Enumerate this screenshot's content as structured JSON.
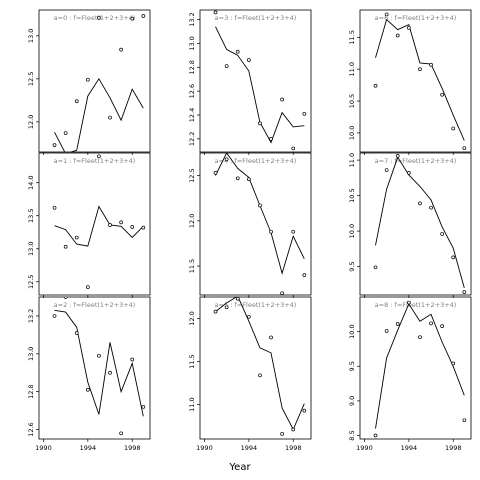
{
  "figure": {
    "xlabel": "Year",
    "colors": {
      "line": "#000000",
      "points": "#000000",
      "strip_text": "#7f7f7f",
      "frame": "#000000"
    }
  },
  "chart_data": [
    {
      "type": "line",
      "label": "a=0 : f=Fleet(1+2+3+4)",
      "xticks": [
        1990,
        1994,
        1998
      ],
      "xtick_labels": [
        "",
        "",
        ""
      ],
      "xlim": [
        1989.6,
        1999.6
      ],
      "yticks": [
        12.0,
        12.5,
        13.0
      ],
      "ylim": [
        11.65,
        13.3
      ],
      "points": {
        "x": [
          1991,
          1992,
          1993,
          1994,
          1995,
          1996,
          1997,
          1998,
          1999
        ],
        "y": [
          11.73,
          11.87,
          12.24,
          12.49,
          13.21,
          12.05,
          12.84,
          13.2,
          13.23
        ]
      },
      "fitted": {
        "x": [
          1991,
          1992,
          1993,
          1994,
          1995,
          1996,
          1997,
          1998,
          1999
        ],
        "y": [
          11.88,
          11.63,
          11.67,
          12.3,
          12.5,
          12.28,
          12.02,
          12.38,
          12.16
        ]
      }
    },
    {
      "type": "line",
      "label": "a=3 : f=Fleet(1+2+3+4)",
      "xticks": [
        1990,
        1994,
        1998
      ],
      "xtick_labels": [
        "",
        "",
        ""
      ],
      "xlim": [
        1989.6,
        1999.6
      ],
      "yticks": [
        12.2,
        12.4,
        12.6,
        12.8,
        13.0,
        13.2
      ],
      "ylim": [
        12.09,
        13.28
      ],
      "points": {
        "x": [
          1991,
          1992,
          1993,
          1994,
          1995,
          1996,
          1997,
          1998,
          1999
        ],
        "y": [
          13.26,
          12.81,
          12.93,
          12.86,
          12.33,
          12.2,
          12.53,
          12.12,
          12.41
        ]
      },
      "fitted": {
        "x": [
          1991,
          1992,
          1993,
          1994,
          1995,
          1996,
          1997,
          1998,
          1999
        ],
        "y": [
          13.14,
          12.95,
          12.9,
          12.77,
          12.34,
          12.17,
          12.42,
          12.3,
          12.31
        ]
      }
    },
    {
      "type": "line",
      "label": "a=6 : f=Fleet(1+2+3+4)",
      "xticks": [
        1990,
        1994,
        1998
      ],
      "xtick_labels": [
        "",
        "",
        ""
      ],
      "xlim": [
        1989.6,
        1999.6
      ],
      "yticks": [
        10.0,
        10.5,
        11.0,
        11.5
      ],
      "ylim": [
        9.7,
        11.93
      ],
      "points": {
        "x": [
          1991,
          1992,
          1993,
          1994,
          1995,
          1996,
          1997,
          1998,
          1999
        ],
        "y": [
          10.74,
          11.86,
          11.53,
          11.65,
          11.0,
          11.07,
          10.6,
          10.07,
          9.76
        ]
      },
      "fitted": {
        "x": [
          1991,
          1992,
          1993,
          1994,
          1995,
          1996,
          1997,
          1998,
          1999
        ],
        "y": [
          11.18,
          11.78,
          11.62,
          11.7,
          11.1,
          11.08,
          10.7,
          10.28,
          9.88
        ]
      }
    },
    {
      "type": "line",
      "label": "a=1 : f=Fleet(1+2+3+4)",
      "xticks": [
        1990,
        1994,
        1998
      ],
      "xtick_labels": [
        "",
        "",
        ""
      ],
      "xlim": [
        1989.6,
        1999.6
      ],
      "yticks": [
        12.5,
        13.0,
        13.5,
        14.0
      ],
      "ylim": [
        12.3,
        14.45
      ],
      "points": {
        "x": [
          1991,
          1992,
          1993,
          1994,
          1995,
          1996,
          1997,
          1998,
          1999
        ],
        "y": [
          13.62,
          13.03,
          13.17,
          12.42,
          14.4,
          13.36,
          13.4,
          13.33,
          13.32
        ]
      },
      "fitted": {
        "x": [
          1991,
          1992,
          1993,
          1994,
          1995,
          1996,
          1997,
          1998,
          1999
        ],
        "y": [
          13.35,
          13.29,
          13.07,
          13.04,
          13.64,
          13.36,
          13.34,
          13.17,
          13.34
        ]
      }
    },
    {
      "type": "line",
      "label": "a=4 : f=Fleet(1+2+3+4)",
      "xticks": [
        1990,
        1994,
        1998
      ],
      "xtick_labels": [
        "",
        "",
        ""
      ],
      "xlim": [
        1989.6,
        1999.6
      ],
      "yticks": [
        11.5,
        12.0,
        12.5
      ],
      "ylim": [
        11.18,
        12.75
      ],
      "points": {
        "x": [
          1991,
          1992,
          1993,
          1994,
          1995,
          1996,
          1997,
          1998,
          1999
        ],
        "y": [
          12.53,
          12.68,
          12.47,
          12.46,
          12.17,
          11.88,
          11.2,
          11.88,
          11.4
        ]
      },
      "fitted": {
        "x": [
          1991,
          1992,
          1993,
          1994,
          1995,
          1996,
          1997,
          1998,
          1999
        ],
        "y": [
          12.5,
          12.75,
          12.58,
          12.48,
          12.17,
          11.87,
          11.42,
          11.83,
          11.58
        ]
      }
    },
    {
      "type": "line",
      "label": "a=7 : f=Fleet(1+2+3+4)",
      "xticks": [
        1990,
        1994,
        1998
      ],
      "xtick_labels": [
        "",
        "",
        ""
      ],
      "xlim": [
        1989.6,
        1999.6
      ],
      "yticks": [
        9.5,
        10.0,
        10.5,
        11.0
      ],
      "ylim": [
        9.1,
        11.1
      ],
      "points": {
        "x": [
          1991,
          1992,
          1993,
          1994,
          1995,
          1996,
          1997,
          1998,
          1999
        ],
        "y": [
          9.49,
          10.86,
          11.06,
          10.82,
          10.39,
          10.33,
          9.96,
          9.63,
          9.14
        ]
      },
      "fitted": {
        "x": [
          1991,
          1992,
          1993,
          1994,
          1995,
          1996,
          1997,
          1998,
          1999
        ],
        "y": [
          9.8,
          10.59,
          11.04,
          10.79,
          10.63,
          10.44,
          10.06,
          9.76,
          9.2
        ]
      }
    },
    {
      "type": "line",
      "label": "a=2 : f=Fleet(1+2+3+4)",
      "xticks": [
        1990,
        1994,
        1998
      ],
      "xtick_labels": [
        "1990",
        "1994",
        "1998"
      ],
      "xlim": [
        1989.6,
        1999.6
      ],
      "yticks": [
        12.6,
        12.8,
        13.0,
        13.2
      ],
      "ylim": [
        12.55,
        13.3
      ],
      "points": {
        "x": [
          1991,
          1992,
          1993,
          1994,
          1995,
          1996,
          1997,
          1998,
          1999
        ],
        "y": [
          13.2,
          13.3,
          13.11,
          12.81,
          12.99,
          12.9,
          12.58,
          12.97,
          12.72
        ]
      },
      "fitted": {
        "x": [
          1991,
          1992,
          1993,
          1994,
          1995,
          1996,
          1997,
          1998,
          1999
        ],
        "y": [
          13.23,
          13.22,
          13.14,
          12.85,
          12.68,
          13.06,
          12.8,
          12.95,
          12.67
        ]
      }
    },
    {
      "type": "line",
      "label": "a=5 : f=Fleet(1+2+3+4)",
      "xticks": [
        1990,
        1994,
        1998
      ],
      "xtick_labels": [
        "1990",
        "1994",
        "1998"
      ],
      "xlim": [
        1989.6,
        1999.6
      ],
      "yticks": [
        11.0,
        11.5,
        12.0
      ],
      "ylim": [
        10.6,
        12.25
      ],
      "points": {
        "x": [
          1991,
          1992,
          1993,
          1994,
          1995,
          1996,
          1997,
          1998,
          1999
        ],
        "y": [
          12.08,
          12.13,
          12.23,
          12.02,
          11.34,
          11.78,
          10.66,
          10.71,
          10.93
        ]
      },
      "fitted": {
        "x": [
          1991,
          1992,
          1993,
          1994,
          1995,
          1996,
          1997,
          1998,
          1999
        ],
        "y": [
          12.08,
          12.18,
          12.26,
          11.97,
          11.66,
          11.6,
          10.96,
          10.71,
          11.01
        ]
      }
    },
    {
      "type": "line",
      "label": "a=8 : f=Fleet(1+2+3+4)",
      "xticks": [
        1990,
        1994,
        1998
      ],
      "xtick_labels": [
        "1990",
        "1994",
        "1998"
      ],
      "xlim": [
        1989.6,
        1999.6
      ],
      "yticks": [
        8.5,
        9.0,
        9.5,
        10.0
      ],
      "ylim": [
        8.45,
        10.5
      ],
      "points": {
        "x": [
          1991,
          1992,
          1993,
          1994,
          1995,
          1996,
          1997,
          1998,
          1999
        ],
        "y": [
          8.5,
          10.01,
          10.11,
          10.42,
          9.92,
          10.12,
          10.08,
          9.54,
          8.72
        ]
      },
      "fitted": {
        "x": [
          1991,
          1992,
          1993,
          1994,
          1995,
          1996,
          1997,
          1998,
          1999
        ],
        "y": [
          8.6,
          9.62,
          10.02,
          10.4,
          10.15,
          10.25,
          9.85,
          9.5,
          9.08
        ]
      }
    }
  ]
}
